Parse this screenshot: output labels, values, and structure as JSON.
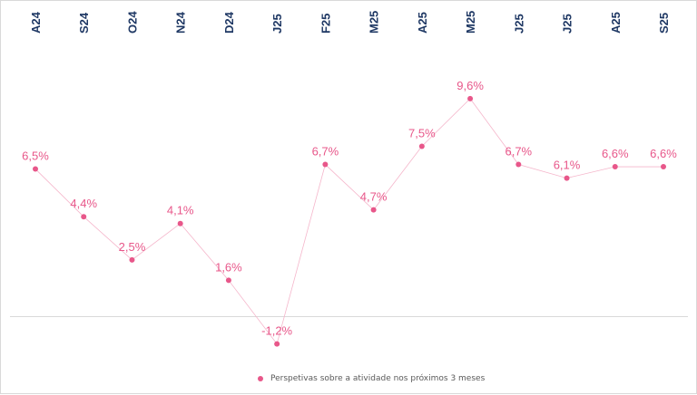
{
  "chart_data": {
    "type": "line",
    "categories": [
      "A24",
      "S24",
      "O24",
      "N24",
      "D24",
      "J25",
      "F25",
      "M25",
      "A25",
      "M25",
      "J25",
      "J25",
      "A25",
      "S25"
    ],
    "series": [
      {
        "name": "Perspetivas sobre a atividade nos próximos 3 meses",
        "values": [
          6.5,
          4.4,
          2.5,
          4.1,
          1.6,
          -1.2,
          6.7,
          4.7,
          7.5,
          9.6,
          6.7,
          6.1,
          6.6,
          6.6
        ],
        "labels": [
          "6,5%",
          "4,4%",
          "2,5%",
          "4,1%",
          "1,6%",
          "-1,2%",
          "6,7%",
          "4,7%",
          "7,5%",
          "9,6%",
          "6,7%",
          "6,1%",
          "6,6%",
          "6,6%"
        ],
        "color": "#e8578a"
      }
    ],
    "title": "",
    "xlabel": "",
    "ylabel": "",
    "ylim": [
      -2,
      11
    ],
    "x_axis_position": "top",
    "grid": false,
    "legend_position": "bottom"
  }
}
